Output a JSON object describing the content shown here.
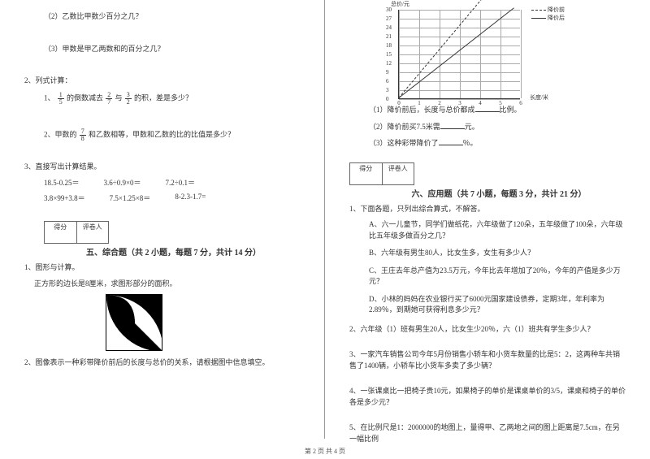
{
  "left": {
    "q2_2": "（2）乙数比甲数少百分之几？",
    "q2_3": "（3）甲数是甲乙两数和的百分之几？",
    "q2_title": "2、列式计算：",
    "q2_1_prefix": "1、",
    "q2_1_a": "1",
    "q2_1_b": "5",
    "q2_1_mid": "的倒数减去",
    "q2_1_c": "2",
    "q2_1_d": "7",
    "q2_1_mid2": "与",
    "q2_1_e": "3",
    "q2_1_f": "2",
    "q2_1_suffix": "的积，差是多少？",
    "q2_2b_prefix": "2、甲数的",
    "q2_2b_a": "7",
    "q2_2b_b": "8",
    "q2_2b_suffix": "和乙数相等，甲数和乙数的比的比值是多少？",
    "q3_title": "3、直接写出计算结果。",
    "calc": {
      "r1c1": "18.5-0.25＝",
      "r1c2": "3.6÷0.9×0＝",
      "r1c3": "7.2÷0.1＝",
      "r2c1": "3.8×99+3.8＝",
      "r2c2": "7.5×1.25×8＝",
      "r2c3": "8-2.3-1.7="
    },
    "score1": "得分",
    "score2": "评卷人",
    "sec5_title": "五、综合题（共 2 小题，每题 7 分，共计 14 分）",
    "sec5_q1a": "1、图形与计算。",
    "sec5_q1b": "正方形的边长是8厘米，求图形部分的面积。",
    "sec5_q2": "2、图像表示一种彩带降价前后的长度与总价的关系，请根据图中信息填空。"
  },
  "right": {
    "chart": {
      "y_label": "总价/元",
      "x_label": "长度/米",
      "y_ticks": [
        "0",
        "3",
        "6",
        "9",
        "12",
        "15",
        "18",
        "21",
        "24",
        "27",
        "30"
      ],
      "x_ticks": [
        "0",
        "1",
        "2",
        "3",
        "4",
        "5",
        "6"
      ],
      "legend_dash": "降价前",
      "legend_solid": "降价后"
    },
    "fill1_a": "（1）降价前后，长度与总价都成",
    "fill1_b": "比例。",
    "fill2_a": "（2）降价前买7.5米需",
    "fill2_b": "元。",
    "fill3_a": "（3）这种彩带降价了",
    "fill3_b": "％。",
    "score1": "得分",
    "score2": "评卷人",
    "sec6_title": "六、应用题（共 7 小题，每题 3 分，共计 21 分）",
    "q1": "1、下面各题，只列出综合算式，不解答。",
    "q1a": "A、六一儿童节，同学们做纸花，六年级做了120朵，五年级做了100朵，六年级比五年级多做百分之几？",
    "q1b": "B、六年级有男生80人，比女生多，女生有多少人？",
    "q1c": "C、王庄去年总产值为23.5万元，今年比去年增加了20％，今年的产值是多少万元？",
    "q1d": "D、小林的妈妈在农业银行买了6000元国家建设债券，定期3年，年利率为2.89％，到期她可获得利息多少元？",
    "q2": "2、六年级（1）班有男生20人，比女生少20％，六（1）班共有学生多少人？",
    "q3": "3、一家汽车销售公司今年5月份销售小轿车和小货车数量的比是5：2，这两种车共销售了1400辆，小轿车比小货车多卖了多少辆？",
    "q4": "4、一张课桌比一把椅子贵10元，如果椅子的单价是课桌单价的3/5，课桌和椅子的单价各是多少元？",
    "q5": "5、在比例尺是1：2000000的地图上，量得甲、乙两地之间的图上距离是7.5cm，在另一幅比例"
  },
  "footer": "第 2 页 共 4 页"
}
